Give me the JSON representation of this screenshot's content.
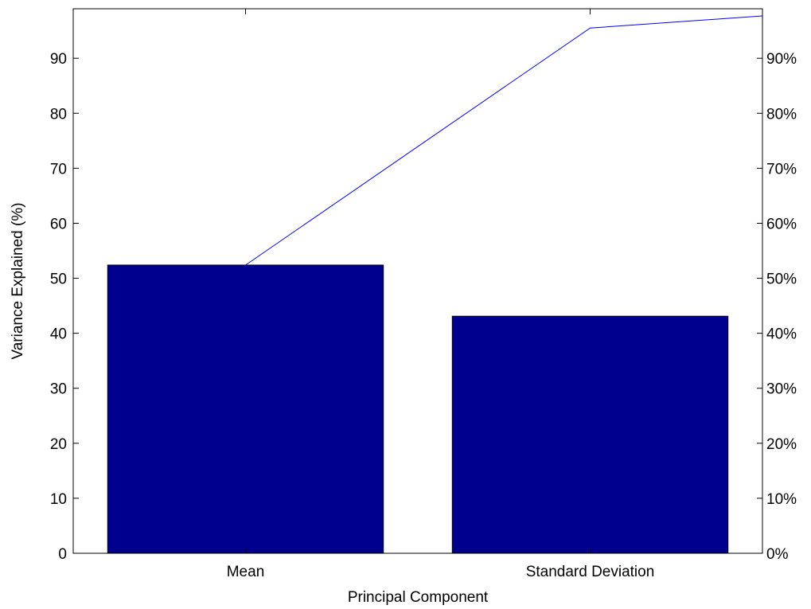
{
  "chart_data": {
    "type": "bar",
    "title": "",
    "xlabel": "Principal Component",
    "ylabel": "Variance Explained (%)",
    "categories": [
      "Mean",
      "Standard Deviation"
    ],
    "values": [
      52.4,
      43.1
    ],
    "ylim": [
      0,
      99
    ],
    "yticks": [
      0,
      10,
      20,
      30,
      40,
      50,
      60,
      70,
      80,
      90
    ],
    "ytick_labels": [
      "0",
      "10",
      "20",
      "30",
      "40",
      "50",
      "60",
      "70",
      "80",
      "90"
    ],
    "xlim": [
      0.5,
      2.5
    ],
    "cumulative_line": {
      "type": "line",
      "x": [
        1,
        2,
        2.5
      ],
      "values": [
        52.4,
        95.5,
        97.7
      ]
    },
    "y2_ticks": [
      0,
      10,
      20,
      30,
      40,
      50,
      60,
      70,
      80,
      90
    ],
    "y2_tick_labels": [
      "0%",
      "10%",
      "20%",
      "30%",
      "40%",
      "50%",
      "60%",
      "70%",
      "80%",
      "90%"
    ],
    "grid": false,
    "legend": "none",
    "colors": {
      "bars": "#00008f",
      "line": "#0000ff",
      "axes": "#000000"
    }
  }
}
